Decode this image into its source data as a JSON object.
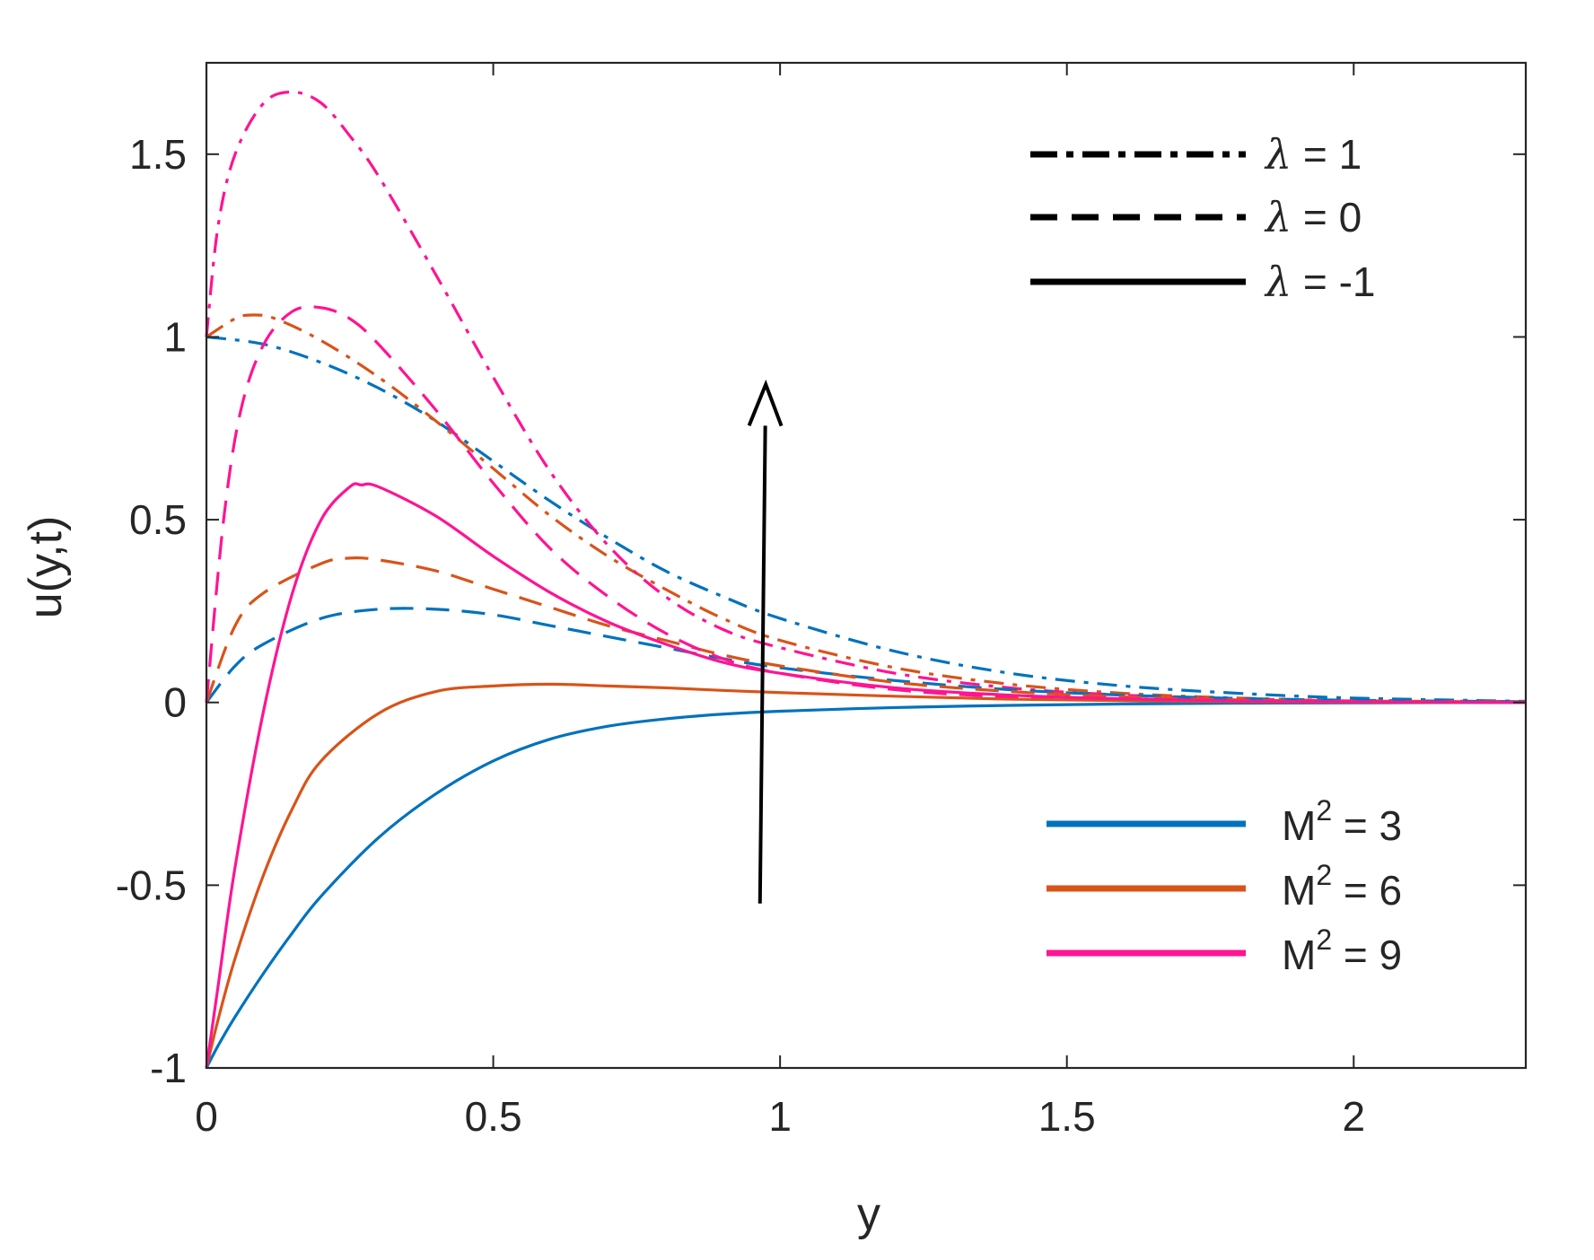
{
  "chart_data": {
    "type": "line",
    "title": "",
    "xlabel": "y",
    "ylabel": "u(y,t)",
    "xlim": [
      0,
      2.3
    ],
    "ylim": [
      -1,
      1.75
    ],
    "xticks": [
      0,
      0.5,
      1,
      1.5,
      2
    ],
    "xtick_labels": [
      "0",
      "0.5",
      "1",
      "1.5",
      "2"
    ],
    "yticks": [
      -1,
      -0.5,
      0,
      0.5,
      1,
      1.5
    ],
    "ytick_labels": [
      "-1",
      "-0.5",
      "0",
      "0.5",
      "1",
      "1.5"
    ],
    "grid": false,
    "legend_styles": {
      "placement": "top-right",
      "entries": [
        {
          "label": "λ = 1",
          "lambda_symbol": "λ",
          "value_text": " = 1",
          "dash": "dashdot"
        },
        {
          "label": "λ = 0",
          "lambda_symbol": "λ",
          "value_text": " = 0",
          "dash": "dashed"
        },
        {
          "label": "λ = -1",
          "lambda_symbol": "λ",
          "value_text": " = -1",
          "dash": "solid"
        }
      ]
    },
    "legend_colors": {
      "placement": "bottom-right",
      "entries": [
        {
          "label": "M² = 3",
          "base": "M",
          "sup": "2",
          "value_text": " = 3",
          "color": "#0072BD"
        },
        {
          "label": "M² = 6",
          "base": "M",
          "sup": "2",
          "value_text": " = 6",
          "color": "#D95319"
        },
        {
          "label": "M² = 9",
          "base": "M",
          "sup": "2",
          "value_text": " = 9",
          "color": "#FF1493"
        }
      ]
    },
    "annotation": {
      "type": "arrow",
      "meaning": "increasing M²",
      "from": [
        0.965,
        -0.55
      ],
      "to": [
        0.975,
        0.87
      ]
    },
    "series": [
      {
        "M2": 3,
        "lambda": 1,
        "color": "#0072BD",
        "dash": "dashdot",
        "x": [
          0,
          0.1,
          0.2,
          0.3,
          0.4,
          0.5,
          0.6,
          0.7,
          0.8,
          0.9,
          1.0,
          1.2,
          1.4,
          1.6,
          1.8,
          2.0,
          2.3
        ],
        "y": [
          1.0,
          0.98,
          0.93,
          0.86,
          0.77,
          0.66,
          0.55,
          0.45,
          0.36,
          0.29,
          0.23,
          0.14,
          0.08,
          0.045,
          0.025,
          0.012,
          0.003
        ]
      },
      {
        "M2": 6,
        "lambda": 1,
        "color": "#D95319",
        "dash": "dashdot",
        "x": [
          0,
          0.05,
          0.08,
          0.12,
          0.2,
          0.3,
          0.4,
          0.5,
          0.6,
          0.7,
          0.8,
          0.9,
          1.0,
          1.2,
          1.4,
          1.6,
          1.8,
          2.0,
          2.3
        ],
        "y": [
          1.0,
          1.05,
          1.06,
          1.05,
          0.99,
          0.89,
          0.77,
          0.64,
          0.51,
          0.4,
          0.31,
          0.23,
          0.17,
          0.095,
          0.05,
          0.025,
          0.012,
          0.005,
          0.001
        ]
      },
      {
        "M2": 9,
        "lambda": 1,
        "color": "#FF1493",
        "dash": "dashdot",
        "x": [
          0,
          0.02,
          0.05,
          0.1,
          0.15,
          0.2,
          0.25,
          0.3,
          0.4,
          0.5,
          0.6,
          0.7,
          0.8,
          0.9,
          1.0,
          1.2,
          1.4,
          1.6,
          1.8,
          2.0,
          2.3
        ],
        "y": [
          1.0,
          1.3,
          1.5,
          1.64,
          1.67,
          1.64,
          1.55,
          1.44,
          1.17,
          0.89,
          0.63,
          0.43,
          0.29,
          0.2,
          0.15,
          0.08,
          0.04,
          0.02,
          0.01,
          0.004,
          0.001
        ]
      },
      {
        "M2": 3,
        "lambda": 0,
        "color": "#0072BD",
        "dash": "dashed",
        "x": [
          0,
          0.05,
          0.1,
          0.2,
          0.3,
          0.4,
          0.5,
          0.6,
          0.7,
          0.8,
          0.9,
          1.0,
          1.2,
          1.4,
          1.6,
          1.8,
          2.0,
          2.3
        ],
        "y": [
          0,
          0.1,
          0.16,
          0.23,
          0.255,
          0.255,
          0.24,
          0.21,
          0.18,
          0.15,
          0.12,
          0.095,
          0.06,
          0.035,
          0.02,
          0.011,
          0.006,
          0.002
        ]
      },
      {
        "M2": 6,
        "lambda": 0,
        "color": "#D95319",
        "dash": "dashed",
        "x": [
          0,
          0.05,
          0.1,
          0.2,
          0.25,
          0.3,
          0.4,
          0.5,
          0.6,
          0.7,
          0.8,
          0.9,
          1.0,
          1.2,
          1.4,
          1.6,
          1.8,
          2.0,
          2.3
        ],
        "y": [
          0,
          0.21,
          0.3,
          0.38,
          0.395,
          0.39,
          0.36,
          0.31,
          0.26,
          0.21,
          0.17,
          0.13,
          0.1,
          0.055,
          0.03,
          0.015,
          0.007,
          0.003,
          0.001
        ]
      },
      {
        "M2": 9,
        "lambda": 0,
        "color": "#FF1493",
        "dash": "dashed",
        "x": [
          0,
          0.03,
          0.06,
          0.1,
          0.15,
          0.2,
          0.25,
          0.3,
          0.4,
          0.5,
          0.6,
          0.7,
          0.8,
          0.9,
          1.0,
          1.2,
          1.4,
          1.6,
          1.8,
          2.0,
          2.3
        ],
        "y": [
          0,
          0.5,
          0.8,
          0.98,
          1.07,
          1.08,
          1.05,
          0.98,
          0.8,
          0.6,
          0.42,
          0.29,
          0.19,
          0.12,
          0.08,
          0.035,
          0.015,
          0.006,
          0.002,
          0.001,
          0
        ]
      },
      {
        "M2": 3,
        "lambda": -1,
        "color": "#0072BD",
        "dash": "solid",
        "x": [
          0,
          0.02,
          0.05,
          0.1,
          0.15,
          0.2,
          0.3,
          0.4,
          0.5,
          0.6,
          0.7,
          0.8,
          0.9,
          1.0,
          1.2,
          1.4,
          1.6,
          1.8,
          2.0,
          2.3
        ],
        "y": [
          -1,
          -0.94,
          -0.86,
          -0.74,
          -0.63,
          -0.53,
          -0.37,
          -0.25,
          -0.16,
          -0.1,
          -0.065,
          -0.045,
          -0.032,
          -0.024,
          -0.014,
          -0.008,
          -0.004,
          -0.002,
          -0.001,
          0
        ]
      },
      {
        "M2": 6,
        "lambda": -1,
        "color": "#D95319",
        "dash": "dashed_no",
        "x": [
          0,
          0.02,
          0.05,
          0.1,
          0.15,
          0.2,
          0.3,
          0.4,
          0.5,
          0.6,
          0.7,
          0.8,
          0.9,
          1.0,
          1.2,
          1.4,
          1.6,
          1.8,
          2.0,
          2.3
        ],
        "y": [
          -1,
          -0.87,
          -0.7,
          -0.47,
          -0.29,
          -0.16,
          -0.03,
          0.03,
          0.045,
          0.05,
          0.045,
          0.04,
          0.033,
          0.027,
          0.017,
          0.009,
          0.005,
          0.002,
          0.001,
          0
        ]
      },
      {
        "M2": 9,
        "lambda": -1,
        "color": "#FF1493",
        "dash": "solid",
        "x": [
          0,
          0.02,
          0.05,
          0.1,
          0.15,
          0.2,
          0.25,
          0.27,
          0.3,
          0.4,
          0.5,
          0.6,
          0.7,
          0.8,
          0.9,
          1.0,
          1.2,
          1.4,
          1.6,
          1.8,
          2.0,
          2.3
        ],
        "y": [
          -1,
          -0.78,
          -0.45,
          -0.02,
          0.3,
          0.5,
          0.59,
          0.595,
          0.59,
          0.51,
          0.4,
          0.3,
          0.22,
          0.16,
          0.11,
          0.08,
          0.04,
          0.02,
          0.01,
          0.004,
          0.002,
          0
        ]
      }
    ]
  }
}
